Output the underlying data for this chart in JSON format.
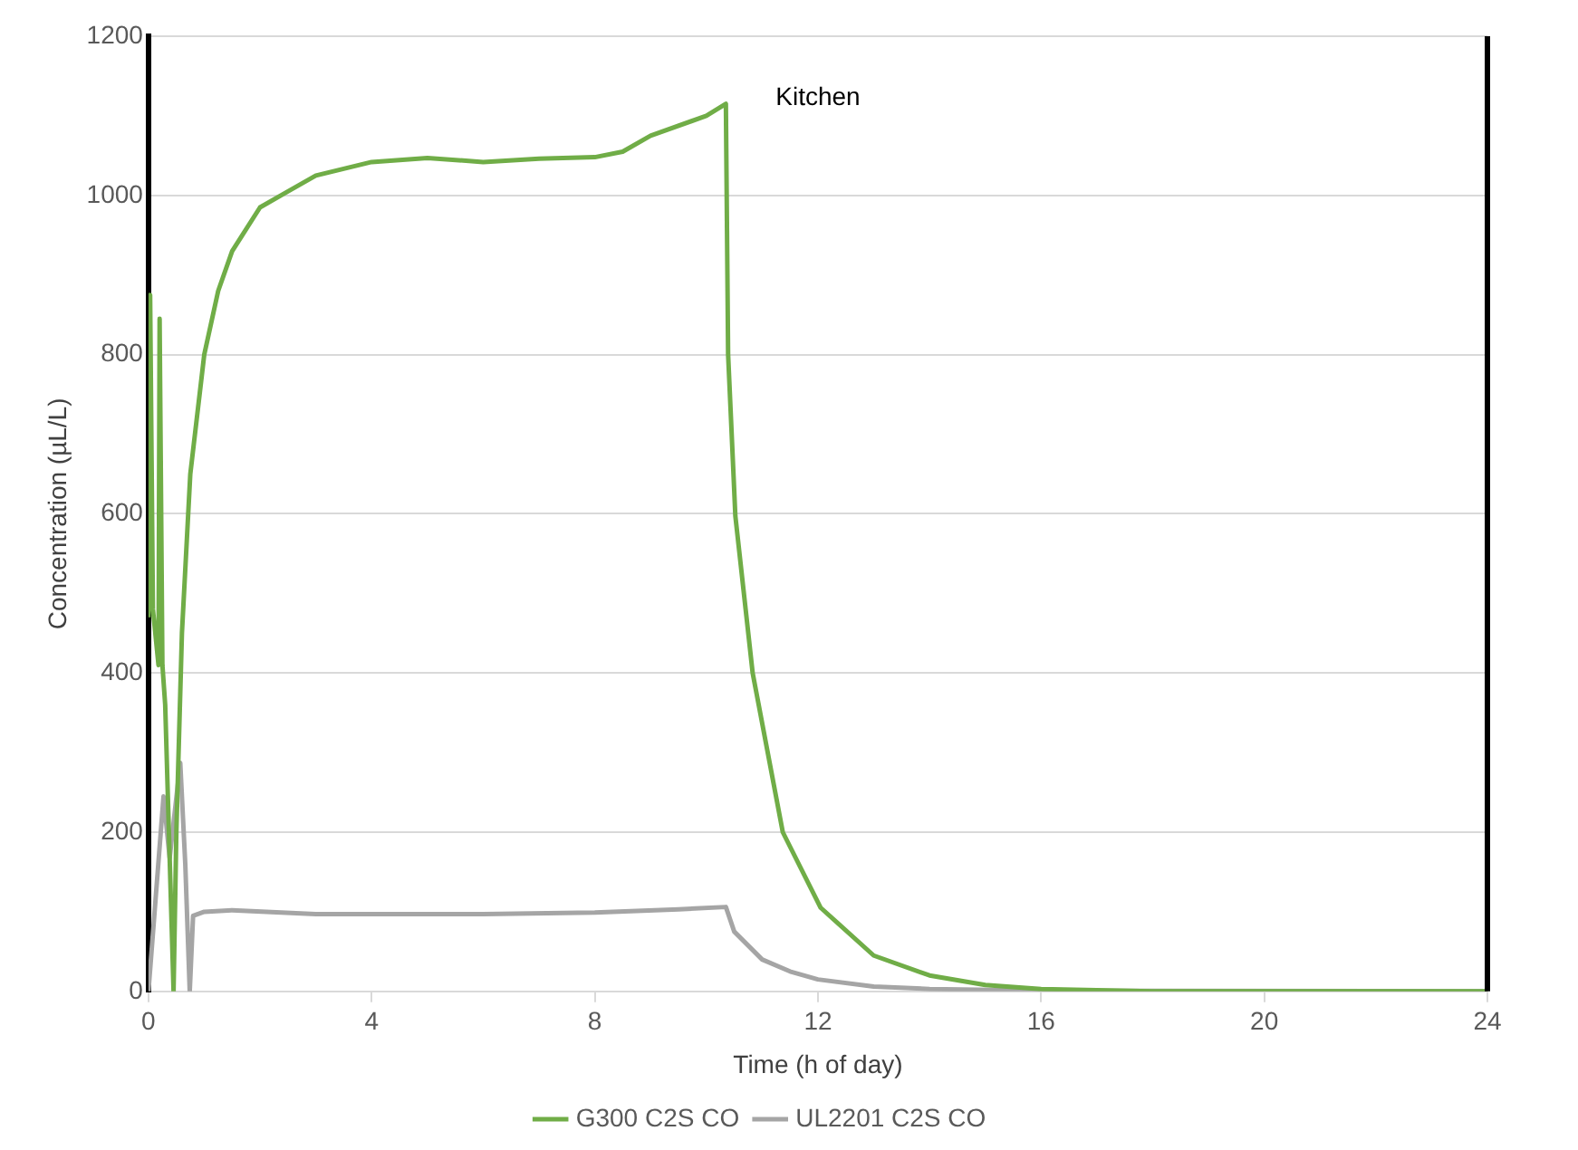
{
  "chart_data": {
    "type": "line",
    "xlabel": "Time (h of day)",
    "ylabel": "Concentration (µL/L)",
    "annotations": [
      "Kitchen"
    ],
    "xlim": [
      0,
      24
    ],
    "xticks": [
      0,
      4,
      8,
      12,
      16,
      20,
      24
    ],
    "ylim": [
      0,
      1200
    ],
    "yticks": [
      0,
      200,
      400,
      600,
      800,
      1000,
      1200
    ],
    "grid": "y",
    "legend": "bottom",
    "marker": "none",
    "line_style": "solid",
    "ref_lines": [
      {
        "axis": "x",
        "value": 24,
        "color": "#000000"
      }
    ],
    "series": [
      {
        "name": "G300 C2S CO",
        "color": "#70ad47",
        "x": [
          0,
          0.03,
          0.08,
          0.18,
          0.2,
          0.25,
          0.3,
          0.45,
          0.5,
          0.6,
          0.75,
          1,
          1.25,
          1.5,
          2,
          2.5,
          3,
          4,
          5,
          6,
          7,
          8,
          8.5,
          9,
          10,
          10.35,
          10.39,
          10.52,
          10.83,
          11.37,
          12.05,
          13,
          14,
          15,
          16,
          18,
          24
        ],
        "values": [
          470,
          875,
          480,
          410,
          845,
          410,
          360,
          0,
          200,
          450,
          650,
          800,
          880,
          930,
          985,
          1005,
          1025,
          1042,
          1047,
          1042,
          1046,
          1048,
          1055,
          1075,
          1100,
          1115,
          800,
          597,
          400,
          200,
          105,
          45,
          20,
          8,
          3,
          0,
          0
        ]
      },
      {
        "name": "UL2201 C2S CO",
        "color": "#a5a5a5",
        "x": [
          0,
          0.27,
          0.38,
          0.57,
          0.66,
          0.74,
          0.8,
          1,
          1.5,
          3,
          6,
          8,
          9.5,
          10.35,
          10.5,
          11,
          11.5,
          12,
          13,
          14,
          16,
          24
        ],
        "values": [
          0,
          245,
          168,
          287,
          160,
          0,
          95,
          100,
          102,
          97,
          97,
          99,
          103,
          106,
          75,
          40,
          25,
          15,
          6,
          3,
          1,
          0
        ]
      }
    ]
  }
}
